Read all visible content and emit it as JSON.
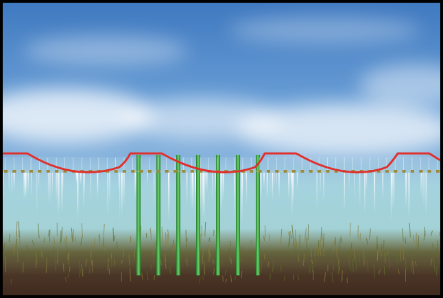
{
  "scene": {
    "colors": {
      "sky_top": "#3f79c0",
      "sky_mid": "#8fb9df",
      "sky_low": "#cfe3ee",
      "cloud": "#ffffff",
      "mist": "#bfe3e6",
      "water_tint": "#8fd2d6",
      "frame": "#000000",
      "red_cable": "#e0302c",
      "green_pole": "#2e9a3a",
      "green_pole_light": "#6fd26a",
      "sprinkler": "#9a8a3a",
      "spray": "#ffffff",
      "crop": "#5f6a2a",
      "soil": "#4a3022"
    },
    "pivot": {
      "tower_count": 7,
      "span_count": 3,
      "emitter_count": 52
    }
  }
}
